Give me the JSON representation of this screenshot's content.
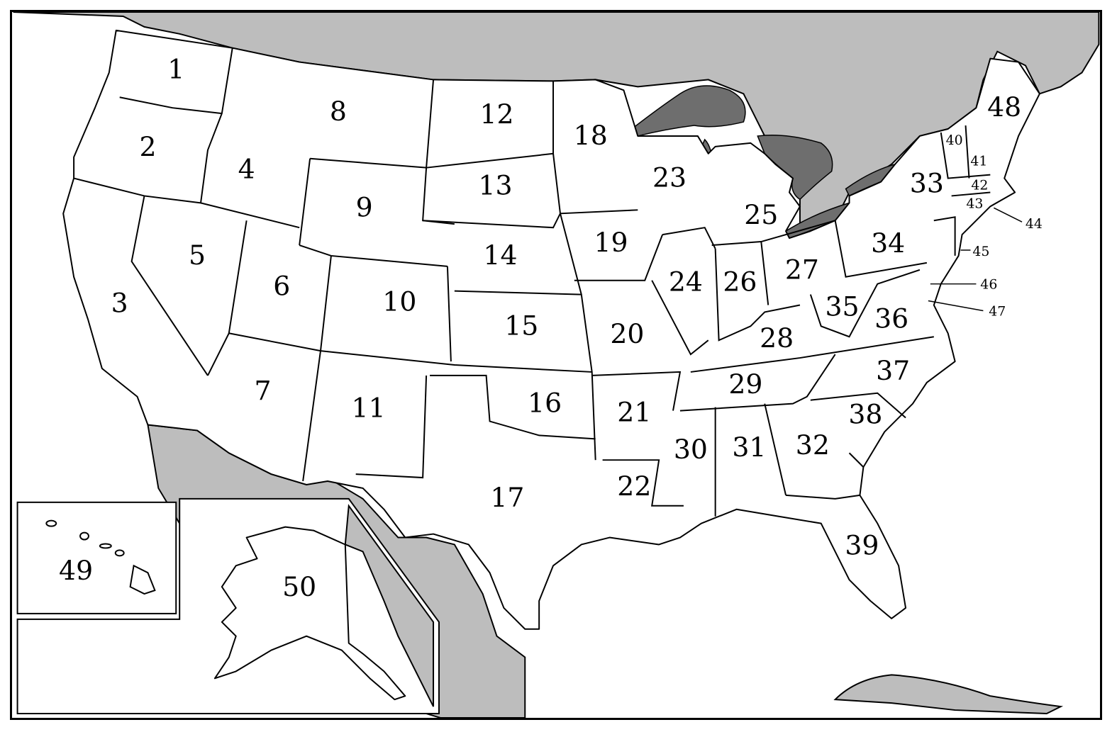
{
  "colors": {
    "land": "#ffffff",
    "foreign_land": "#bdbdbd",
    "lakes": "#6e6e6e",
    "border": "#000000"
  },
  "states": [
    {
      "id": 1,
      "label": "1"
    },
    {
      "id": 2,
      "label": "2"
    },
    {
      "id": 3,
      "label": "3"
    },
    {
      "id": 4,
      "label": "4"
    },
    {
      "id": 5,
      "label": "5"
    },
    {
      "id": 6,
      "label": "6"
    },
    {
      "id": 7,
      "label": "7"
    },
    {
      "id": 8,
      "label": "8"
    },
    {
      "id": 9,
      "label": "9"
    },
    {
      "id": 10,
      "label": "10"
    },
    {
      "id": 11,
      "label": "11"
    },
    {
      "id": 12,
      "label": "12"
    },
    {
      "id": 13,
      "label": "13"
    },
    {
      "id": 14,
      "label": "14"
    },
    {
      "id": 15,
      "label": "15"
    },
    {
      "id": 16,
      "label": "16"
    },
    {
      "id": 17,
      "label": "17"
    },
    {
      "id": 18,
      "label": "18"
    },
    {
      "id": 19,
      "label": "19"
    },
    {
      "id": 20,
      "label": "20"
    },
    {
      "id": 21,
      "label": "21"
    },
    {
      "id": 22,
      "label": "22"
    },
    {
      "id": 23,
      "label": "23"
    },
    {
      "id": 24,
      "label": "24"
    },
    {
      "id": 25,
      "label": "25"
    },
    {
      "id": 26,
      "label": "26"
    },
    {
      "id": 27,
      "label": "27"
    },
    {
      "id": 28,
      "label": "28"
    },
    {
      "id": 29,
      "label": "29"
    },
    {
      "id": 30,
      "label": "30"
    },
    {
      "id": 31,
      "label": "31"
    },
    {
      "id": 32,
      "label": "32"
    },
    {
      "id": 33,
      "label": "33"
    },
    {
      "id": 34,
      "label": "34"
    },
    {
      "id": 35,
      "label": "35"
    },
    {
      "id": 36,
      "label": "36"
    },
    {
      "id": 37,
      "label": "37"
    },
    {
      "id": 38,
      "label": "38"
    },
    {
      "id": 39,
      "label": "39"
    },
    {
      "id": 40,
      "label": "40"
    },
    {
      "id": 41,
      "label": "41"
    },
    {
      "id": 42,
      "label": "42"
    },
    {
      "id": 43,
      "label": "43"
    },
    {
      "id": 44,
      "label": "44"
    },
    {
      "id": 45,
      "label": "45"
    },
    {
      "id": 46,
      "label": "46"
    },
    {
      "id": 47,
      "label": "47"
    },
    {
      "id": 48,
      "label": "48"
    },
    {
      "id": 49,
      "label": "49"
    },
    {
      "id": 50,
      "label": "50"
    }
  ],
  "callouts": {
    "c44": "44",
    "c45": "45",
    "c46": "46",
    "c47": "47"
  }
}
